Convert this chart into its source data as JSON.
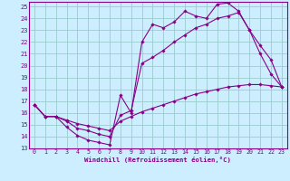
{
  "xlabel": "Windchill (Refroidissement éolien,°C)",
  "bg_color": "#cceeff",
  "line_color": "#880088",
  "grid_color": "#99cccc",
  "xlim": [
    -0.5,
    23.5
  ],
  "ylim": [
    13,
    25.4
  ],
  "xticks": [
    0,
    1,
    2,
    3,
    4,
    5,
    6,
    7,
    8,
    9,
    10,
    11,
    12,
    13,
    14,
    15,
    16,
    17,
    18,
    19,
    20,
    21,
    22,
    23
  ],
  "yticks": [
    13,
    14,
    15,
    16,
    17,
    18,
    19,
    20,
    21,
    22,
    23,
    24,
    25
  ],
  "line1_x": [
    0,
    1,
    2,
    3,
    4,
    5,
    6,
    7,
    8,
    9,
    10,
    11,
    12,
    13,
    14,
    15,
    16,
    17,
    18,
    19,
    20,
    21,
    22,
    23
  ],
  "line1_y": [
    16.7,
    15.7,
    15.7,
    14.8,
    14.1,
    13.7,
    13.5,
    13.3,
    17.5,
    16.0,
    22.0,
    23.5,
    23.2,
    23.7,
    24.6,
    24.2,
    24.0,
    25.2,
    25.3,
    24.6,
    23.0,
    21.0,
    19.3,
    18.2
  ],
  "line2_x": [
    0,
    1,
    2,
    3,
    4,
    5,
    6,
    7,
    8,
    9,
    10,
    11,
    12,
    13,
    14,
    15,
    16,
    17,
    18,
    19,
    20,
    21,
    22,
    23
  ],
  "line2_y": [
    16.7,
    15.7,
    15.7,
    15.3,
    14.7,
    14.5,
    14.2,
    14.0,
    15.8,
    16.2,
    20.2,
    20.7,
    21.3,
    22.0,
    22.6,
    23.2,
    23.5,
    24.0,
    24.2,
    24.5,
    23.0,
    21.7,
    20.5,
    18.2
  ],
  "line3_x": [
    0,
    1,
    2,
    3,
    4,
    5,
    6,
    7,
    8,
    9,
    10,
    11,
    12,
    13,
    14,
    15,
    16,
    17,
    18,
    19,
    20,
    21,
    22,
    23
  ],
  "line3_y": [
    16.7,
    15.7,
    15.7,
    15.4,
    15.1,
    14.9,
    14.7,
    14.5,
    15.3,
    15.7,
    16.1,
    16.4,
    16.7,
    17.0,
    17.3,
    17.6,
    17.8,
    18.0,
    18.2,
    18.3,
    18.4,
    18.4,
    18.3,
    18.2
  ]
}
